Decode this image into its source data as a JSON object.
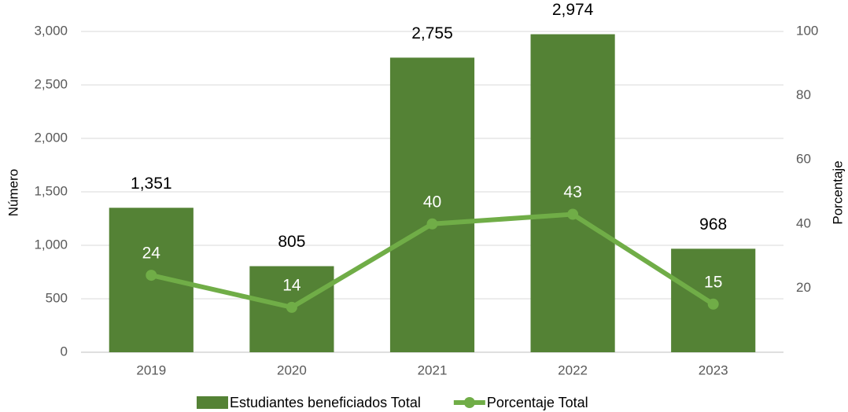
{
  "chart_data": {
    "type": "bar",
    "categories": [
      "2019",
      "2020",
      "2021",
      "2022",
      "2023"
    ],
    "series": [
      {
        "name": "Estudiantes beneficiados Total",
        "type": "bar",
        "color": "#548235",
        "values": [
          1351,
          805,
          2755,
          2974,
          968
        ],
        "value_labels": [
          "1,351",
          "805",
          "2,755",
          "2,974",
          "968"
        ]
      },
      {
        "name": "Porcentaje Total",
        "type": "line",
        "axis": "y2",
        "color": "#70ad47",
        "values": [
          24,
          14,
          40,
          43,
          15
        ]
      }
    ],
    "ylabel": "Número",
    "y2label": "Porcentaje",
    "ylim": [
      0,
      3000
    ],
    "yticks": [
      0,
      500,
      {
        "value": 1000,
        "label": "1,000"
      },
      {
        "value": 1500,
        "label": "1,500"
      },
      {
        "value": 2000,
        "label": "2,000"
      },
      {
        "value": 2500,
        "label": "2,500"
      },
      {
        "value": 3000,
        "label": "3,000"
      }
    ],
    "y2lim": [
      0,
      100
    ],
    "y2ticks": [
      20,
      40,
      60,
      80,
      100
    ],
    "grid": true,
    "legend": "bottom"
  }
}
